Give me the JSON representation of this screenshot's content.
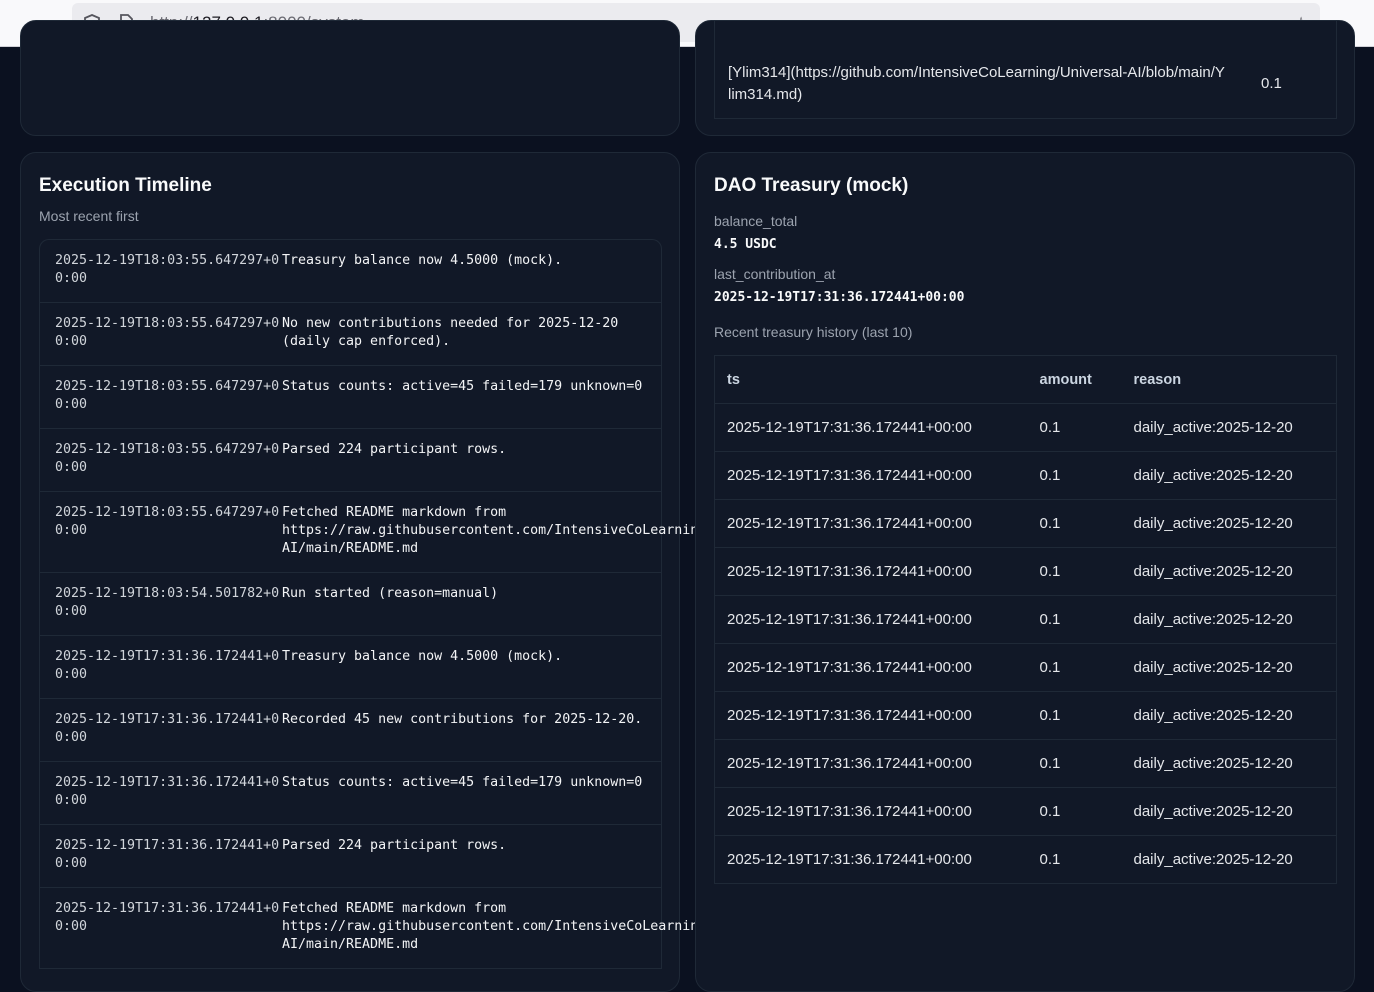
{
  "browser": {
    "url_prefix": "http://",
    "url_host": "127.0.0.1",
    "url_suffix": ":8000/system"
  },
  "top_right": {
    "cell": "[Ylim314](https://github.com/IntensiveCoLearning/Universal-AI/blob/main/Ylim314.md)",
    "amount": "0.1"
  },
  "timeline": {
    "title": "Execution Timeline",
    "subtitle": "Most recent first",
    "rows": [
      {
        "ts": "2025-12-19T18:03:55.647297+00:00",
        "msg": "Treasury balance now 4.5000 (mock)."
      },
      {
        "ts": "2025-12-19T18:03:55.647297+00:00",
        "msg": "No new contributions needed for 2025-12-20 (daily cap enforced)."
      },
      {
        "ts": "2025-12-19T18:03:55.647297+00:00",
        "msg": "Status counts: active=45 failed=179 unknown=0"
      },
      {
        "ts": "2025-12-19T18:03:55.647297+00:00",
        "msg": "Parsed 224 participant rows."
      },
      {
        "ts": "2025-12-19T18:03:55.647297+00:00",
        "msg": "Fetched README markdown from https://raw.githubusercontent.com/IntensiveCoLearning/Universal-AI/main/README.md"
      },
      {
        "ts": "2025-12-19T18:03:54.501782+00:00",
        "msg": "Run started (reason=manual)"
      },
      {
        "ts": "2025-12-19T17:31:36.172441+00:00",
        "msg": "Treasury balance now 4.5000 (mock)."
      },
      {
        "ts": "2025-12-19T17:31:36.172441+00:00",
        "msg": "Recorded 45 new contributions for 2025-12-20."
      },
      {
        "ts": "2025-12-19T17:31:36.172441+00:00",
        "msg": "Status counts: active=45 failed=179 unknown=0"
      },
      {
        "ts": "2025-12-19T17:31:36.172441+00:00",
        "msg": "Parsed 224 participant rows."
      },
      {
        "ts": "2025-12-19T17:31:36.172441+00:00",
        "msg": "Fetched README markdown from https://raw.githubusercontent.com/IntensiveCoLearning/Universal-AI/main/README.md"
      }
    ]
  },
  "treasury": {
    "title": "DAO Treasury (mock)",
    "balance_label": "balance_total",
    "balance_value": "4.5 USDC",
    "last_label": "last_contribution_at",
    "last_value": "2025-12-19T17:31:36.172441+00:00",
    "history_label": "Recent treasury history (last 10)",
    "columns": [
      "ts",
      "amount",
      "reason"
    ],
    "rows": [
      [
        "2025-12-19T17:31:36.172441+00:00",
        "0.1",
        "daily_active:2025-12-20"
      ],
      [
        "2025-12-19T17:31:36.172441+00:00",
        "0.1",
        "daily_active:2025-12-20"
      ],
      [
        "2025-12-19T17:31:36.172441+00:00",
        "0.1",
        "daily_active:2025-12-20"
      ],
      [
        "2025-12-19T17:31:36.172441+00:00",
        "0.1",
        "daily_active:2025-12-20"
      ],
      [
        "2025-12-19T17:31:36.172441+00:00",
        "0.1",
        "daily_active:2025-12-20"
      ],
      [
        "2025-12-19T17:31:36.172441+00:00",
        "0.1",
        "daily_active:2025-12-20"
      ],
      [
        "2025-12-19T17:31:36.172441+00:00",
        "0.1",
        "daily_active:2025-12-20"
      ],
      [
        "2025-12-19T17:31:36.172441+00:00",
        "0.1",
        "daily_active:2025-12-20"
      ],
      [
        "2025-12-19T17:31:36.172441+00:00",
        "0.1",
        "daily_active:2025-12-20"
      ],
      [
        "2025-12-19T17:31:36.172441+00:00",
        "0.1",
        "daily_active:2025-12-20"
      ]
    ]
  }
}
